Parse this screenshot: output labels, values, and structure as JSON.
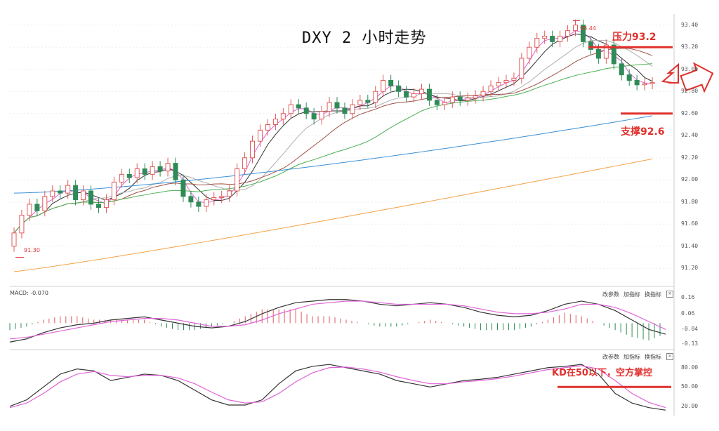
{
  "title": "DXY 2 小时走势",
  "annotations": {
    "resistance": "压力93.2",
    "support": "支撑92.6",
    "kd_note": "KD在50以下，空方掌控",
    "high_marker": "93.44",
    "low_marker": "91.30"
  },
  "macd_label": "MACD: -0.070",
  "toolbar": {
    "macd": [
      "改参数",
      "加指标",
      "换指标"
    ],
    "kd": [
      "改参数",
      "加指标",
      "换指标"
    ]
  },
  "colors": {
    "up": "#e05a5a",
    "down": "#2e8b57",
    "ma_pink": "#e063d8",
    "ma_black": "#333333",
    "ma_grey": "#b0b0b0",
    "ma_brown": "#a0524a",
    "ma_green": "#4caf50",
    "ma_blue": "#3a8fd6",
    "ma_orange": "#f3a245",
    "annotation": "#e0302c"
  },
  "chart_data": [
    {
      "type": "candlestick",
      "title": "DXY 2 小时走势",
      "ylim": [
        91.1,
        93.5
      ],
      "ticks": [
        "93.40",
        "93.20",
        "93.00",
        "92.80",
        "92.60",
        "92.40",
        "92.20",
        "92.00",
        "91.80",
        "91.60",
        "91.40",
        "91.20"
      ],
      "tick_values": [
        93.4,
        93.2,
        93.0,
        92.8,
        92.6,
        92.4,
        92.2,
        92.0,
        91.8,
        91.6,
        91.4,
        91.2
      ],
      "close": [
        91.52,
        91.68,
        91.78,
        91.72,
        91.85,
        91.9,
        91.88,
        91.95,
        91.82,
        91.9,
        91.78,
        91.75,
        91.82,
        91.98,
        92.05,
        92.02,
        92.1,
        92.05,
        92.12,
        92.08,
        92.15,
        92.0,
        91.85,
        91.8,
        91.76,
        91.82,
        91.84,
        91.85,
        91.9,
        92.1,
        92.2,
        92.35,
        92.45,
        92.5,
        92.55,
        92.6,
        92.68,
        92.65,
        92.6,
        92.55,
        92.62,
        92.7,
        92.65,
        92.6,
        92.68,
        92.72,
        92.7,
        92.8,
        92.9,
        92.85,
        92.8,
        92.75,
        92.78,
        92.82,
        92.72,
        92.68,
        92.7,
        92.75,
        92.72,
        92.74,
        92.76,
        92.8,
        92.85,
        92.88,
        92.9,
        92.92,
        93.1,
        93.2,
        93.28,
        93.3,
        93.25,
        93.3,
        93.35,
        93.4,
        93.25,
        93.18,
        93.1,
        93.22,
        93.05,
        92.95,
        92.9,
        92.86,
        92.87,
        92.88
      ],
      "open": [
        91.4,
        91.52,
        91.68,
        91.78,
        91.72,
        91.85,
        91.9,
        91.88,
        91.95,
        91.82,
        91.9,
        91.78,
        91.75,
        91.82,
        91.98,
        92.05,
        92.02,
        92.1,
        92.05,
        92.12,
        92.08,
        92.15,
        92.0,
        91.85,
        91.8,
        91.76,
        91.82,
        91.84,
        91.85,
        91.9,
        92.1,
        92.2,
        92.35,
        92.45,
        92.5,
        92.55,
        92.6,
        92.68,
        92.65,
        92.6,
        92.55,
        92.62,
        92.7,
        92.65,
        92.6,
        92.68,
        92.72,
        92.7,
        92.8,
        92.9,
        92.85,
        92.8,
        92.75,
        92.78,
        92.82,
        92.72,
        92.68,
        92.7,
        92.75,
        92.72,
        92.74,
        92.76,
        92.8,
        92.85,
        92.88,
        92.9,
        92.92,
        93.1,
        93.2,
        93.28,
        93.3,
        93.25,
        93.3,
        93.35,
        93.4,
        93.25,
        93.18,
        93.1,
        93.22,
        93.05,
        92.95,
        92.9,
        92.86,
        92.87
      ],
      "moving_averages": [
        "ma_pink",
        "ma_black",
        "ma_grey",
        "ma_brown",
        "ma_green",
        "ma_blue",
        "ma_orange"
      ],
      "levels": [
        {
          "label": "压力93.2",
          "value": 93.2
        },
        {
          "label": "支撑92.6",
          "value": 92.6
        }
      ],
      "extremes": [
        {
          "label": "93.44",
          "value": 93.44
        },
        {
          "label": "91.30",
          "value": 91.3
        }
      ]
    },
    {
      "type": "bar",
      "title": "MACD: -0.070",
      "ylim": [
        -0.15,
        0.18
      ],
      "ticks": [
        "0.16",
        "0.06",
        "-0.04",
        "-0.13"
      ],
      "tick_values": [
        0.16,
        0.06,
        -0.04,
        -0.13
      ],
      "series": [
        {
          "name": "DIF",
          "values": [
            -0.12,
            -0.1,
            -0.06,
            -0.03,
            -0.01,
            0.0,
            0.02,
            0.03,
            0.04,
            0.02,
            0.0,
            -0.02,
            -0.03,
            -0.02,
            0.01,
            0.06,
            0.1,
            0.13,
            0.14,
            0.15,
            0.15,
            0.14,
            0.12,
            0.11,
            0.12,
            0.13,
            0.12,
            0.1,
            0.07,
            0.05,
            0.04,
            0.05,
            0.08,
            0.12,
            0.14,
            0.12,
            0.08,
            0.02,
            -0.04,
            -0.07
          ]
        },
        {
          "name": "DEA",
          "values": [
            -0.1,
            -0.09,
            -0.07,
            -0.05,
            -0.03,
            -0.01,
            0.01,
            0.02,
            0.03,
            0.03,
            0.02,
            0.0,
            -0.02,
            -0.02,
            -0.01,
            0.02,
            0.06,
            0.09,
            0.12,
            0.13,
            0.14,
            0.14,
            0.13,
            0.12,
            0.12,
            0.12,
            0.12,
            0.11,
            0.09,
            0.07,
            0.06,
            0.06,
            0.07,
            0.09,
            0.12,
            0.12,
            0.1,
            0.06,
            0.01,
            -0.04
          ]
        }
      ]
    },
    {
      "type": "line",
      "title": "KD",
      "ylim": [
        10,
        95
      ],
      "ticks": [
        "80.00",
        "50.00",
        "20.00"
      ],
      "tick_values": [
        80,
        50,
        20
      ],
      "series": [
        {
          "name": "K",
          "values": [
            20,
            30,
            50,
            70,
            78,
            75,
            60,
            65,
            70,
            68,
            60,
            45,
            30,
            22,
            22,
            30,
            55,
            75,
            82,
            85,
            80,
            75,
            70,
            60,
            55,
            50,
            55,
            60,
            62,
            65,
            70,
            75,
            80,
            82,
            85,
            70,
            40,
            25,
            18,
            14
          ]
        },
        {
          "name": "D",
          "values": [
            18,
            25,
            40,
            58,
            70,
            74,
            68,
            66,
            68,
            68,
            64,
            55,
            42,
            30,
            25,
            27,
            40,
            58,
            72,
            80,
            81,
            78,
            73,
            66,
            60,
            55,
            55,
            58,
            60,
            63,
            67,
            72,
            77,
            80,
            83,
            78,
            60,
            40,
            26,
            18
          ]
        }
      ],
      "levels": [
        {
          "label": "KD在50以下，空方掌控",
          "value": 50
        }
      ]
    }
  ]
}
